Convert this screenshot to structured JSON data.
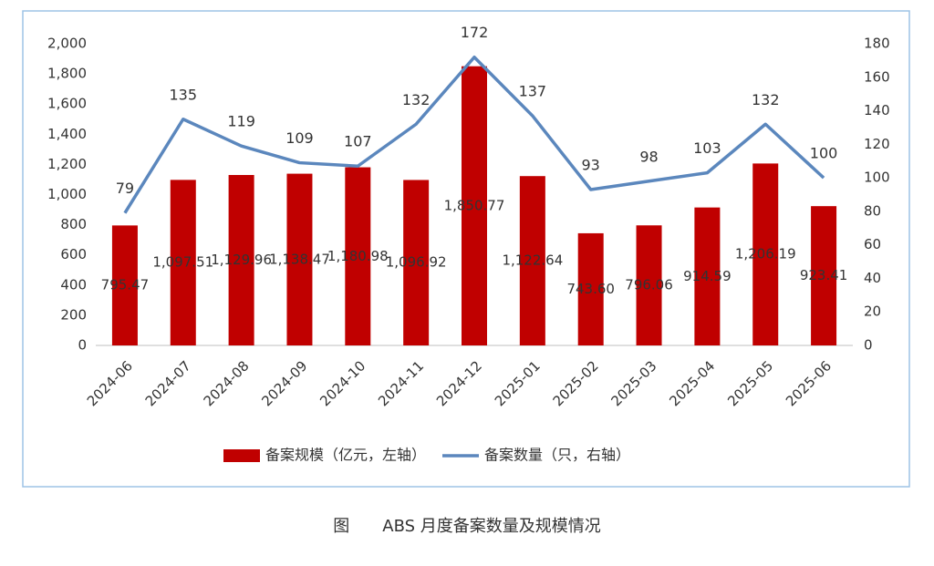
{
  "chart_data": {
    "type": "bar",
    "caption": "图　　ABS 月度备案数量及规模情况",
    "categories": [
      "2024-06",
      "2024-07",
      "2024-08",
      "2024-09",
      "2024-10",
      "2024-11",
      "2024-12",
      "2025-01",
      "2025-02",
      "2025-03",
      "2025-04",
      "2025-05",
      "2025-06"
    ],
    "series": [
      {
        "name": "备案规模（亿元，左轴）",
        "type": "bar",
        "color": "#c00000",
        "values": [
          795.47,
          1097.51,
          1129.96,
          1138.47,
          1180.98,
          1096.92,
          1850.77,
          1122.64,
          743.6,
          796.06,
          914.59,
          1206.19,
          923.41
        ],
        "value_labels": [
          "795.47",
          "1,097.51",
          "1,129.96",
          "1,138.47",
          "1,180.98",
          "1,096.92",
          "1,850.77",
          "1,122.64",
          "743.60",
          "796.06",
          "914.59",
          "1,206.19",
          "923.41"
        ]
      },
      {
        "name": "备案数量（只，右轴）",
        "type": "line",
        "axis": "y2",
        "color": "#5b87bd",
        "values": [
          79,
          135,
          119,
          109,
          107,
          132,
          172,
          137,
          93,
          98,
          103,
          132,
          100
        ]
      }
    ],
    "ylim": [
      0,
      2000
    ],
    "yticks": [
      0,
      200,
      400,
      600,
      800,
      {
        "value": 1000,
        "label": "1,000"
      },
      {
        "value": 1200,
        "label": "1,200"
      },
      {
        "value": 1400,
        "label": "1,400"
      },
      {
        "value": 1600,
        "label": "1,600"
      },
      {
        "value": 1800,
        "label": "1,800"
      },
      {
        "value": 2000,
        "label": "2,000"
      }
    ],
    "y2lim": [
      0,
      180
    ],
    "y2ticks": [
      0,
      20,
      40,
      60,
      80,
      100,
      120,
      140,
      160,
      180
    ],
    "legend": "bottom"
  }
}
